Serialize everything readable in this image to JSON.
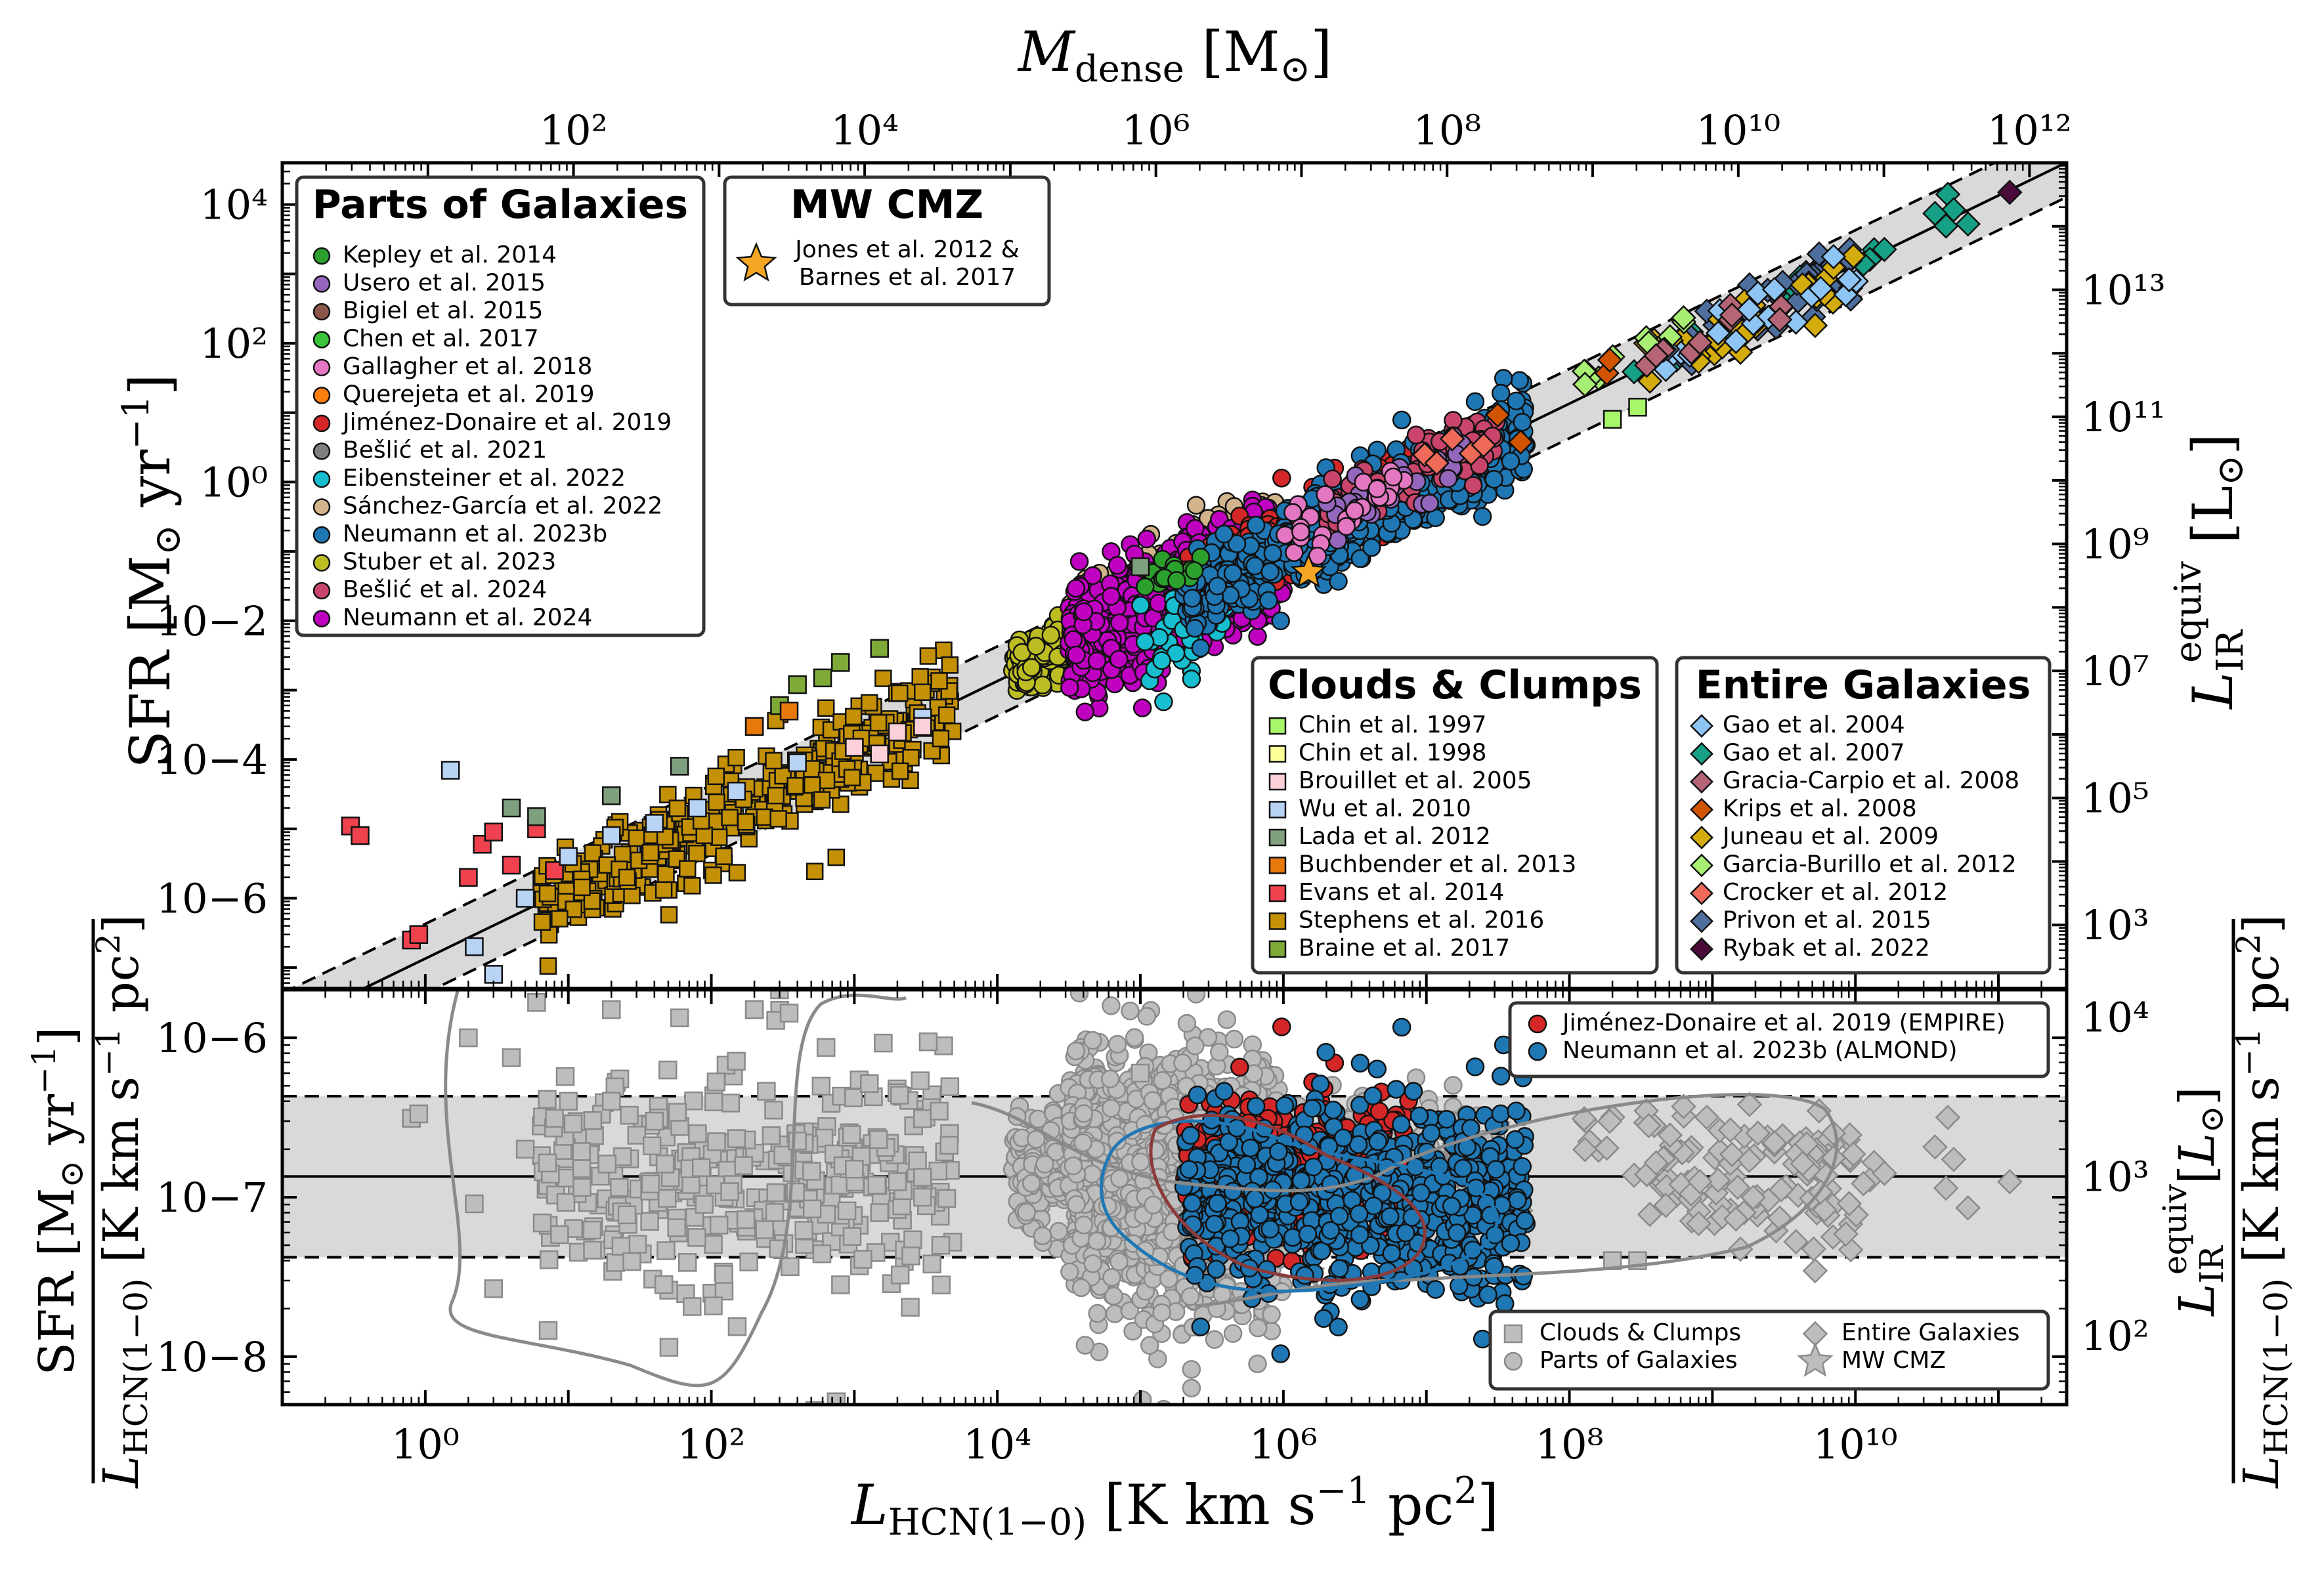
{
  "colors": {
    "band": "#d9d9d9",
    "gray_marker": "#bdbdbd",
    "gray_edge": "#8a8a8a",
    "mw_cmz": "#f5a623",
    "empire": "#d62728",
    "almond": "#1f77b4"
  },
  "chart_data": [
    {
      "type": "scatter",
      "panel": "top",
      "xlabel": "L_HCN(1−0) [K km s⁻¹ pc²]",
      "ylabel": "SFR [M⊙ yr⁻¹]",
      "top_xlabel": "M_dense [M⊙]",
      "right_ylabel": "L_IR^equiv [L⊙]",
      "xscale": "log",
      "yscale": "log",
      "xlim": [
        0.1,
        300000000000.0
      ],
      "ylim": [
        5e-08,
        40000.0
      ],
      "top_xlim": [
        1,
        1800000000000.0
      ],
      "right_ylim": [
        100.0,
        1000000000000000.0
      ],
      "xticks": [
        1,
        100,
        10000,
        1000000,
        100000000,
        10000000000
      ],
      "yticks": [
        1e-06,
        0.0001,
        0.01,
        1,
        100,
        10000
      ],
      "top_xticks": [
        100,
        10000,
        1000000,
        100000000,
        10000000000,
        1000000000000
      ],
      "right_yticks": [
        1000,
        100000,
        10000000,
        1000000000,
        100000000000,
        10000000000000
      ],
      "fit": {
        "log_ratio_sfr_per_lhcn": -6.87,
        "band_dex": 0.5
      },
      "tick_labels_y": [
        "10−6",
        "10−4",
        "10−2",
        "10⁰",
        "10²",
        "10⁴"
      ],
      "tick_labels_top": [
        "10²",
        "10⁴",
        "10⁶",
        "10⁸",
        "10¹⁰",
        "10¹²"
      ],
      "tick_labels_right": [
        "10³",
        "10⁵",
        "10⁷",
        "10⁹",
        "10¹¹",
        "10¹³"
      ],
      "legends": {
        "parts": {
          "title": "Parts of Galaxies",
          "entries": [
            {
              "label": "Kepley et al. 2014",
              "color": "#2ca02c",
              "marker": "circle"
            },
            {
              "label": "Usero et al. 2015",
              "color": "#9467bd",
              "marker": "circle"
            },
            {
              "label": "Bigiel et al. 2015",
              "color": "#8c564b",
              "marker": "circle"
            },
            {
              "label": "Chen et al. 2017",
              "color": "#3ac43a",
              "marker": "circle"
            },
            {
              "label": "Gallagher et al. 2018",
              "color": "#e377c2",
              "marker": "circle"
            },
            {
              "label": "Querejeta et al. 2019",
              "color": "#ff7f0e",
              "marker": "circle"
            },
            {
              "label": "Jiménez-Donaire et al. 2019",
              "color": "#d62728",
              "marker": "circle"
            },
            {
              "label": "Bešlić et al. 2021",
              "color": "#7f7f7f",
              "marker": "circle"
            },
            {
              "label": "Eibensteiner et al. 2022",
              "color": "#17becf",
              "marker": "circle"
            },
            {
              "label": "Sánchez-García et al. 2022",
              "color": "#d2b48c",
              "marker": "circle"
            },
            {
              "label": "Neumann et al. 2023b",
              "color": "#1f77b4",
              "marker": "circle"
            },
            {
              "label": "Stuber et al. 2023",
              "color": "#bcbd22",
              "marker": "circle"
            },
            {
              "label": "Bešlić et al. 2024",
              "color": "#c9456b",
              "marker": "circle"
            },
            {
              "label": "Neumann et al. 2024",
              "color": "#c000c0",
              "marker": "circle"
            }
          ]
        },
        "mw": {
          "title": "MW CMZ",
          "entries": [
            {
              "label": "Jones et al. 2012 &",
              "label2": "Barnes et al. 2017",
              "color": "#f5a623",
              "marker": "star"
            }
          ]
        },
        "clouds": {
          "title": "Clouds & Clumps",
          "entries": [
            {
              "label": "Chin et al. 1997",
              "color": "#a6f56a",
              "marker": "square"
            },
            {
              "label": "Chin et al. 1998",
              "color": "#ffff99",
              "marker": "square"
            },
            {
              "label": "Brouillet et al. 2005",
              "color": "#fbd0d8",
              "marker": "square"
            },
            {
              "label": "Wu et al. 2010",
              "color": "#b9d3f5",
              "marker": "square"
            },
            {
              "label": "Lada et al. 2012",
              "color": "#7fa07f",
              "marker": "square"
            },
            {
              "label": "Buchbender et al. 2013",
              "color": "#e8780c",
              "marker": "square"
            },
            {
              "label": "Evans et al. 2014",
              "color": "#f0424e",
              "marker": "square"
            },
            {
              "label": "Stephens et al. 2016",
              "color": "#c49006",
              "marker": "square"
            },
            {
              "label": "Braine et al. 2017",
              "color": "#7faa38",
              "marker": "square"
            }
          ]
        },
        "entire": {
          "title": "Entire Galaxies",
          "entries": [
            {
              "label": "Gao et al. 2004",
              "color": "#8ec5f5",
              "marker": "diamond"
            },
            {
              "label": "Gao et al. 2007",
              "color": "#16a085",
              "marker": "diamond"
            },
            {
              "label": "Gracia-Carpio et al. 2008",
              "color": "#b56576",
              "marker": "diamond"
            },
            {
              "label": "Krips et al. 2008",
              "color": "#d35400",
              "marker": "diamond"
            },
            {
              "label": "Juneau et al. 2009",
              "color": "#d4ac0d",
              "marker": "diamond"
            },
            {
              "label": "Garcia-Burillo et al. 2012",
              "color": "#a8ee72",
              "marker": "diamond"
            },
            {
              "label": "Crocker et al. 2012",
              "color": "#f06a5a",
              "marker": "diamond"
            },
            {
              "label": "Privon et al. 2015",
              "color": "#4e6f9e",
              "marker": "diamond"
            },
            {
              "label": "Rybak et al. 2022",
              "color": "#4a0a3a",
              "marker": "diamond"
            }
          ]
        }
      },
      "series": [
        {
          "name": "Evans et al. 2014",
          "points": [
            [
              0.3,
              1.1e-05
            ],
            [
              0.35,
              8e-06
            ],
            [
              0.8,
              2.5e-07
            ],
            [
              0.9,
              3e-07
            ],
            [
              2,
              2e-06
            ],
            [
              2.5,
              6e-06
            ],
            [
              4,
              3e-06
            ],
            [
              6,
              1e-05
            ],
            [
              3,
              9e-06
            ],
            [
              8,
              2.5e-06
            ]
          ]
        },
        {
          "name": "Wu et al. 2010",
          "points": [
            [
              1.5,
              7e-05
            ],
            [
              2.2,
              2e-07
            ],
            [
              3,
              8e-08
            ],
            [
              5,
              1e-06
            ],
            [
              10,
              4e-06
            ],
            [
              20,
              8e-06
            ],
            [
              40,
              1.2e-05
            ],
            [
              80,
              2e-05
            ],
            [
              150,
              3.5e-05
            ],
            [
              400,
              9e-05
            ],
            [
              1000,
              0.00015
            ],
            [
              3000,
              0.0004
            ]
          ]
        },
        {
          "name": "Lada et al. 2012",
          "points": [
            [
              4,
              2e-05
            ],
            [
              6,
              1.5e-05
            ],
            [
              20,
              3e-05
            ],
            [
              60,
              8e-05
            ],
            [
              200,
              0.0003
            ],
            [
              100000.0,
              0.06
            ]
          ]
        },
        {
          "name": "Brouillet et al. 2005",
          "points": [
            [
              1000,
              0.00015
            ],
            [
              2000,
              0.00025
            ],
            [
              1500,
              0.00012
            ],
            [
              3000,
              0.0003
            ]
          ]
        },
        {
          "name": "Braine et al. 2017",
          "points": [
            [
              400,
              0.0012
            ],
            [
              600,
              0.0015
            ],
            [
              800,
              0.0025
            ],
            [
              1500,
              0.004
            ],
            [
              300,
              0.0006
            ]
          ]
        },
        {
          "name": "Buchbender et al. 2013",
          "points": [
            [
              200,
              0.0003
            ],
            [
              350,
              0.0005
            ]
          ]
        },
        {
          "name": "Chin et al. 1997",
          "points": [
            [
              200000000.0,
              8
            ],
            [
              300000000.0,
              12
            ]
          ]
        },
        {
          "name": "MW CMZ",
          "points": [
            [
              1500000.0,
              0.05
            ]
          ]
        },
        {
          "name": "Rybak et al. 2022",
          "points": [
            [
              120000000000.0,
              15000.0
            ]
          ]
        }
      ],
      "cloud_distributions": [
        {
          "name": "Stephens et al. 2016",
          "n": 350,
          "log_x": [
            0.8,
            3.7
          ],
          "log_y_offset": 0.0,
          "scatter": 0.35
        }
      ],
      "galaxy_distributions": [
        {
          "name": "Stuber et al. 2023",
          "n": 160,
          "log_x": [
            4.1,
            4.7
          ],
          "log_y_offset": 0.05,
          "scatter": 0.2
        },
        {
          "name": "Sánchez-García et al. 2022",
          "n": 320,
          "log_x": [
            4.5,
            6.0
          ],
          "log_y_offset": 0.35,
          "scatter": 0.25
        },
        {
          "name": "Neumann et al. 2024",
          "n": 1200,
          "log_x": [
            4.5,
            6.0
          ],
          "log_y_offset": -0.05,
          "scatter": 0.35
        },
        {
          "name": "Eibensteiner et al. 2022",
          "n": 40,
          "log_x": [
            5.0,
            5.6
          ],
          "log_y_offset": -0.6,
          "scatter": 0.4
        },
        {
          "name": "Jiménez-Donaire et al. 2019",
          "n": 400,
          "log_x": [
            5.3,
            6.9
          ],
          "log_y_offset": 0.0,
          "scatter": 0.25
        },
        {
          "name": "Neumann et al. 2023b",
          "n": 700,
          "log_x": [
            5.3,
            7.7
          ],
          "log_y_offset": -0.15,
          "scatter": 0.3
        },
        {
          "name": "Bešlić et al. 2024",
          "n": 120,
          "log_x": [
            6.3,
            7.5
          ],
          "log_y_offset": 0.1,
          "scatter": 0.2
        },
        {
          "name": "Usero et al. 2015",
          "n": 30,
          "log_x": [
            6.3,
            7.3
          ],
          "log_y_offset": 0.0,
          "scatter": 0.2
        },
        {
          "name": "Gallagher et al. 2018",
          "n": 30,
          "log_x": [
            6.0,
            7.0
          ],
          "log_y_offset": 0.05,
          "scatter": 0.2
        },
        {
          "name": "Kepley et al. 2014",
          "n": 15,
          "log_x": [
            5.0,
            5.5
          ],
          "log_y_offset": 0.3,
          "scatter": 0.2
        }
      ],
      "entire_distributions": [
        {
          "name": "Gao et al. 2007",
          "n": 20,
          "log_x": [
            8.0,
            11.0
          ],
          "log_y_offset": 0.05,
          "scatter": 0.15
        },
        {
          "name": "Privon et al. 2015",
          "n": 45,
          "log_x": [
            8.5,
            10.0
          ],
          "log_y_offset": 0.05,
          "scatter": 0.2
        },
        {
          "name": "Juneau et al. 2009",
          "n": 30,
          "log_x": [
            8.5,
            10.0
          ],
          "log_y_offset": -0.1,
          "scatter": 0.2
        },
        {
          "name": "Gao et al. 2004",
          "n": 20,
          "log_x": [
            8.5,
            10.3
          ],
          "log_y_offset": 0.0,
          "scatter": 0.2
        },
        {
          "name": "Garcia-Burillo et al. 2012",
          "n": 12,
          "log_x": [
            8.0,
            9.3
          ],
          "log_y_offset": 0.3,
          "scatter": 0.15
        },
        {
          "name": "Gracia-Carpio et al. 2008",
          "n": 10,
          "log_x": [
            8.5,
            9.5
          ],
          "log_y_offset": 0.0,
          "scatter": 0.15
        },
        {
          "name": "Krips et al. 2008",
          "n": 4,
          "log_x": [
            7.3,
            8.5
          ],
          "log_y_offset": 0.2,
          "scatter": 0.15
        },
        {
          "name": "Crocker et al. 2012",
          "n": 5,
          "log_x": [
            6.5,
            7.5
          ],
          "log_y_offset": 0.1,
          "scatter": 0.15
        }
      ]
    },
    {
      "type": "scatter",
      "panel": "bottom",
      "xlabel": "L_HCN(1−0) [K km s⁻¹ pc²]",
      "ylabel": "SFR [M⊙ yr⁻¹] / L_HCN(1−0) [K km s⁻¹ pc²]",
      "right_ylabel": "L_IR^equiv [L⊙] / L_HCN(1−0) [K km s⁻¹ pc²]",
      "xscale": "log",
      "yscale": "log",
      "xlim": [
        0.1,
        300000000000.0
      ],
      "ylim": [
        5e-09,
        2e-06
      ],
      "xticks": [
        1,
        100,
        10000,
        1000000,
        100000000,
        10000000000
      ],
      "yticks": [
        1e-08,
        1e-07,
        1e-06
      ],
      "right_yticks": [
        100,
        1000,
        10000
      ],
      "tick_labels_x": [
        "10⁰",
        "10²",
        "10⁴",
        "10⁶",
        "10⁸",
        "10¹⁰"
      ],
      "tick_labels_y": [
        "10−8",
        "10−7",
        "10−6"
      ],
      "tick_labels_right": [
        "10²",
        "10³",
        "10⁴"
      ],
      "median": 1.35e-07,
      "band": [
        4.2e-08,
        4.3e-07
      ],
      "legend_top": [
        {
          "label": "Jiménez-Donaire et al. 2019 (EMPIRE)",
          "color": "#d62728"
        },
        {
          "label": "Neumann et al. 2023b (ALMOND)",
          "color": "#1f77b4"
        }
      ],
      "legend_bottom": [
        {
          "label": "Clouds & Clumps",
          "marker": "square"
        },
        {
          "label": "Parts of Galaxies",
          "marker": "circle"
        },
        {
          "label": "Entire Galaxies",
          "marker": "diamond"
        },
        {
          "label": "MW CMZ",
          "marker": "star"
        }
      ]
    }
  ]
}
